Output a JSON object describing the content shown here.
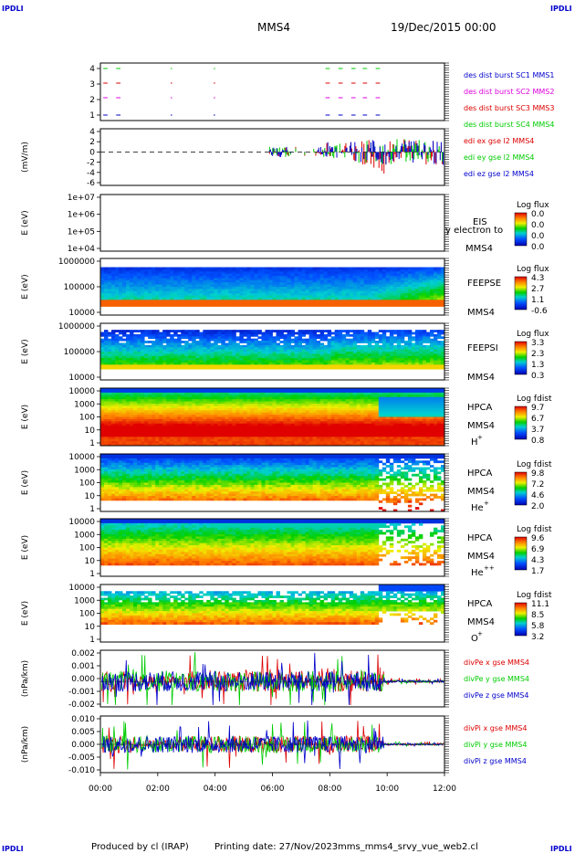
{
  "header": {
    "corner_tl": "IPDLI",
    "corner_tr": "IPDLI",
    "corner_bl": "IPDLI",
    "corner_br": "IPDLI",
    "title": "MMS4",
    "date": "19/Dec/2015 00:00"
  },
  "footer": {
    "produced": "Produced by cl (IRAP)",
    "printing": "Printing date: 27/Nov/2023",
    "file": "mms_mms4_srvy_vue_web2.cl"
  },
  "colors": {
    "blue": "#0000cc",
    "red": "#dd0000",
    "green": "#00cc00",
    "magenta": "#dd00dd"
  },
  "chart_data": [
    {
      "type": "line",
      "id": "burst",
      "ylabel": "",
      "yticks": [
        "4",
        "3",
        "2",
        "1"
      ],
      "legend": [
        {
          "name": "des dist burst SC1 MMS1",
          "color": "#0000cc"
        },
        {
          "name": "des dist burst SC2 MMS2",
          "color": "#dd00dd"
        },
        {
          "name": "des dist burst SC3 MMS3",
          "color": "#dd0000"
        },
        {
          "name": "des dist burst SC4 MMS4",
          "color": "#00cc00"
        }
      ],
      "segments_hours": [
        [
          0.1,
          0.25
        ],
        [
          0.55,
          0.7
        ],
        [
          2.45,
          2.5
        ],
        [
          3.95,
          4.0
        ],
        [
          7.85,
          8.0
        ],
        [
          8.3,
          8.45
        ],
        [
          8.75,
          8.9
        ],
        [
          9.15,
          9.3
        ],
        [
          9.6,
          9.75
        ]
      ]
    },
    {
      "type": "line",
      "id": "edi",
      "ylabel": "(mV/m)",
      "yticks": [
        "4",
        "2",
        "0",
        "-2",
        "-4",
        "-6"
      ],
      "ylim": [
        -6,
        4
      ],
      "legend": [
        {
          "name": "edi ex gse l2 MMS4",
          "color": "#dd0000"
        },
        {
          "name": "edi ey gse l2 MMS4",
          "color": "#00cc00"
        },
        {
          "name": "edi ez gse l2 MMS4",
          "color": "#0000cc"
        }
      ]
    },
    {
      "type": "heatmap",
      "id": "eis",
      "ylabel": "E (eV)",
      "yticks": [
        "1e+07",
        "1e+06",
        "1e+05",
        "1e+04"
      ],
      "label": [
        "EIS",
        "MMS4"
      ],
      "overlay_text": "y electron to",
      "colorbar_title": "Log flux",
      "colorbar_ticks": [
        "0.0",
        "0.0",
        "0.0",
        "0.0"
      ]
    },
    {
      "type": "heatmap",
      "id": "feepse",
      "ylabel": "E (eV)",
      "yticks": [
        "1000000",
        "100000",
        "10000"
      ],
      "label": [
        "FEEPSE",
        "MMS4"
      ],
      "colorbar_title": "Log flux",
      "colorbar_ticks": [
        "4.3",
        "2.7",
        "1.1",
        "-0.6"
      ]
    },
    {
      "type": "heatmap",
      "id": "feepsi",
      "ylabel": "E (eV)",
      "yticks": [
        "1000000",
        "100000",
        "10000"
      ],
      "label": [
        "FEEPSI",
        "MMS4"
      ],
      "colorbar_title": "Log flux",
      "colorbar_ticks": [
        "3.3",
        "2.3",
        "1.3",
        "0.3"
      ]
    },
    {
      "type": "heatmap",
      "id": "hpca_h",
      "ylabel": "E (eV)",
      "yticks": [
        "10000",
        "1000",
        "100",
        "10",
        "1"
      ],
      "label": [
        "HPCA",
        "MMS4",
        "H"
      ],
      "species_sup": "+",
      "colorbar_title": "Log fdist",
      "colorbar_ticks": [
        "9.7",
        "6.7",
        "3.7",
        "0.8"
      ]
    },
    {
      "type": "heatmap",
      "id": "hpca_he",
      "ylabel": "E (eV)",
      "yticks": [
        "10000",
        "1000",
        "100",
        "10",
        "1"
      ],
      "label": [
        "HPCA",
        "MMS4",
        "He"
      ],
      "species_sup": "+",
      "colorbar_title": "Log fdist",
      "colorbar_ticks": [
        "9.8",
        "7.2",
        "4.6",
        "2.0"
      ]
    },
    {
      "type": "heatmap",
      "id": "hpca_hepp",
      "ylabel": "E (eV)",
      "yticks": [
        "10000",
        "1000",
        "100",
        "10",
        "1"
      ],
      "label": [
        "HPCA",
        "MMS4",
        "He"
      ],
      "species_sup": "++",
      "colorbar_title": "Log fdist",
      "colorbar_ticks": [
        "9.6",
        "6.9",
        "4.3",
        "1.7"
      ]
    },
    {
      "type": "heatmap",
      "id": "hpca_o",
      "ylabel": "E (eV)",
      "yticks": [
        "10000",
        "1000",
        "100",
        "10",
        "1"
      ],
      "label": [
        "HPCA",
        "MMS4",
        "O"
      ],
      "species_sup": "+",
      "colorbar_title": "Log fdist",
      "colorbar_ticks": [
        "11.1",
        "8.5",
        "5.8",
        "3.2"
      ]
    },
    {
      "type": "line",
      "id": "divpe",
      "ylabel": "(nPa/km)",
      "yticks": [
        "0.002",
        "0.001",
        "0.000",
        "-0.001",
        "-0.002"
      ],
      "ylim": [
        -0.002,
        0.0025
      ],
      "legend": [
        {
          "name": "divPe x gse MMS4",
          "color": "#dd0000"
        },
        {
          "name": "divPe y gse MMS4",
          "color": "#00cc00"
        },
        {
          "name": "divPe z gse MMS4",
          "color": "#0000cc"
        }
      ]
    },
    {
      "type": "line",
      "id": "divpi",
      "ylabel": "(nPa/km)",
      "yticks": [
        "0.010",
        "0.005",
        "0.000",
        "-0.005",
        "-0.010"
      ],
      "ylim": [
        -0.012,
        0.012
      ],
      "legend": [
        {
          "name": "divPi x gse MMS4",
          "color": "#dd0000"
        },
        {
          "name": "divPi y gse MMS4",
          "color": "#00cc00"
        },
        {
          "name": "divPi z gse MMS4",
          "color": "#0000cc"
        }
      ]
    }
  ],
  "xaxis": {
    "ticks": [
      "00:00",
      "02:00",
      "04:00",
      "06:00",
      "08:00",
      "10:00",
      "12:00"
    ],
    "xlim_hours": [
      0,
      12
    ]
  }
}
